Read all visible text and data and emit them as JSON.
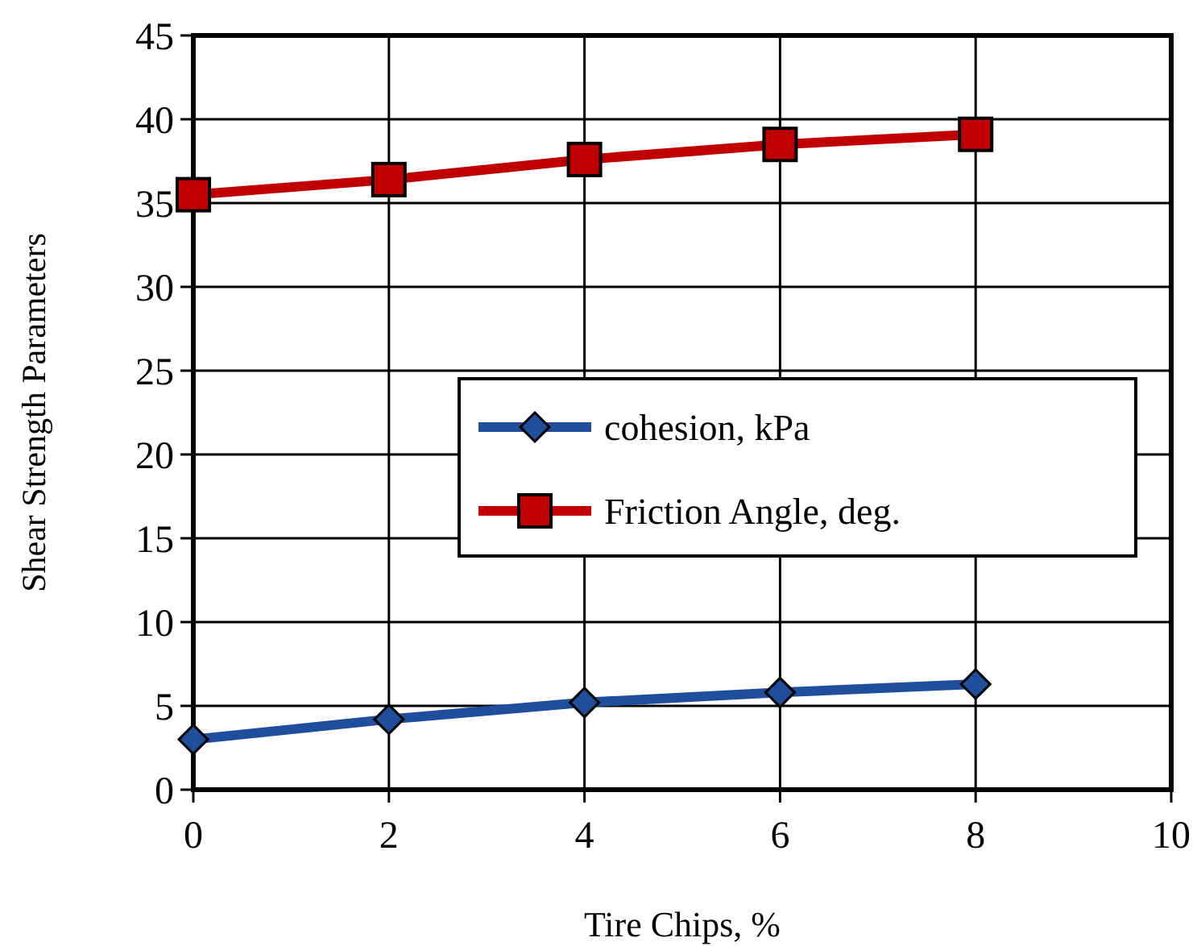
{
  "chart_data": {
    "type": "line",
    "xlabel": "Tire Chips, %",
    "ylabel": "Shear Strength Parameters",
    "x": [
      0,
      2,
      4,
      6,
      8
    ],
    "series": [
      {
        "name": "cohesion, kPa",
        "color": "#1f4e9c",
        "marker": "diamond",
        "values": [
          3.0,
          4.2,
          5.2,
          5.8,
          6.3
        ]
      },
      {
        "name": "Friction Angle, deg.",
        "color": "#c00000",
        "marker": "square",
        "values": [
          35.5,
          36.4,
          37.6,
          38.5,
          39.1
        ]
      }
    ],
    "xlim": [
      0,
      10
    ],
    "xticks": [
      0,
      2,
      4,
      6,
      8,
      10
    ],
    "ylim": [
      0,
      45
    ],
    "yticks": [
      0,
      5,
      10,
      15,
      20,
      25,
      30,
      35,
      40,
      45
    ],
    "grid": true,
    "legend": "right",
    "line_style": "solid"
  }
}
